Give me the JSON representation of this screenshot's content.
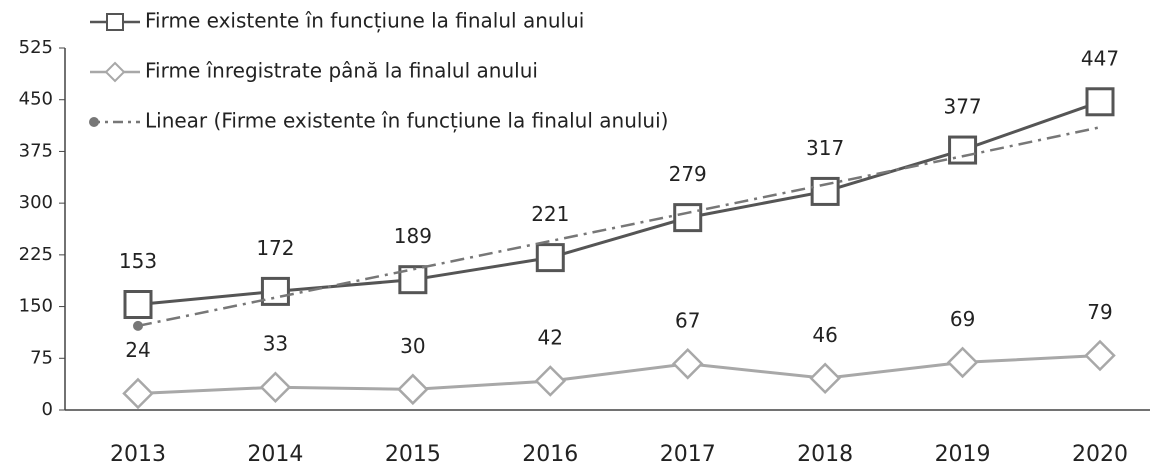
{
  "chart_data": {
    "type": "line",
    "categories": [
      "2013",
      "2014",
      "2015",
      "2016",
      "2017",
      "2018",
      "2019",
      "2020"
    ],
    "series": [
      {
        "name": "Firme existente în funcțiune la finalul anului",
        "color": "#555555",
        "marker": "square",
        "data_labels": true,
        "values": [
          153,
          172,
          189,
          221,
          279,
          317,
          377,
          447
        ]
      },
      {
        "name": "Firme înregistrate până la finalul anului",
        "color": "#a8a8a8",
        "marker": "diamond",
        "data_labels": true,
        "values": [
          24,
          33,
          30,
          42,
          67,
          46,
          69,
          79
        ]
      },
      {
        "name": "Linear (Firme existente în funcțiune la finalul anului)",
        "color": "#777777",
        "marker": "dot",
        "dash": true,
        "data_labels": false,
        "values": [
          122,
          163,
          204,
          245,
          286,
          327,
          368,
          410
        ]
      }
    ],
    "ylim": [
      0,
      525
    ],
    "yticks": [
      0,
      75,
      150,
      225,
      300,
      375,
      450,
      525
    ],
    "grid": false
  }
}
